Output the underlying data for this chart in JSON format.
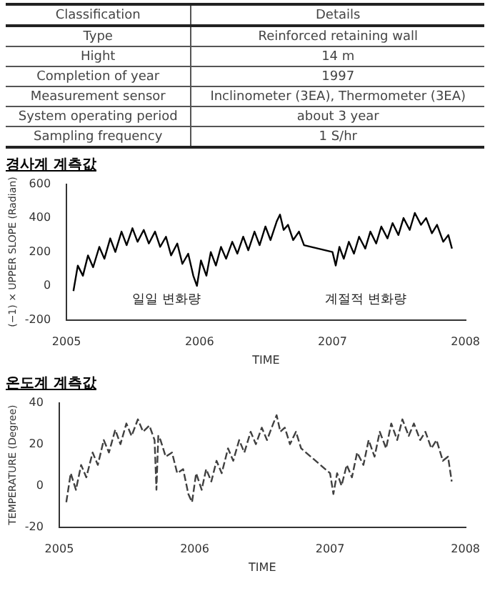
{
  "chart_data": [
    {
      "type": "other",
      "annotations": [
        "Classification",
        "Details",
        "Type",
        "Reinforced retaining wall",
        "Hight",
        "14 m",
        "Completion of year",
        "1997",
        "Measurement sensor",
        "Inclinometer (3EA), Thermometer (3EA)",
        "System operating period",
        "about 3 year",
        "Sampling frequency",
        "1 S/hr"
      ]
    },
    {
      "type": "line",
      "title": "경사계 계측값",
      "xlabel": "TIME",
      "ylabel": "(−1) × UPPER SLOPE (Radian)",
      "xlim": [
        "2005",
        "2008"
      ],
      "xticks": [
        "2005",
        "2006",
        "2007",
        "2008"
      ],
      "ylim": [
        -200,
        600
      ],
      "yticks": [
        -200,
        0,
        200,
        400,
        600
      ],
      "grid": false,
      "legend": false,
      "marker": "none",
      "line_style": "solid",
      "annotations": [
        "일일 변화량",
        "계절적 변화량"
      ],
      "series": [
        {
          "color": "#000000",
          "x": [
            "2005-01-20",
            "2005-02-01",
            "2005-02-15",
            "2005-03-01",
            "2005-03-15",
            "2005-04-01",
            "2005-04-15",
            "2005-05-01",
            "2005-05-15",
            "2005-06-01",
            "2005-06-15",
            "2005-07-01",
            "2005-07-15",
            "2005-08-01",
            "2005-08-15",
            "2005-09-01",
            "2005-09-15",
            "2005-10-01",
            "2005-10-15",
            "2005-11-01",
            "2005-11-15",
            "2005-12-01",
            "2005-12-15",
            "2005-12-25",
            "2006-01-05",
            "2006-01-20",
            "2006-02-01",
            "2006-02-15",
            "2006-03-01",
            "2006-03-15",
            "2006-04-01",
            "2006-04-15",
            "2006-05-01",
            "2006-05-15",
            "2006-06-01",
            "2006-06-15",
            "2006-07-01",
            "2006-07-15",
            "2006-08-01",
            "2006-08-10",
            "2006-08-20",
            "2006-09-01",
            "2006-09-15",
            "2006-10-01",
            "2006-10-15",
            "2007-01-01",
            "2007-01-10",
            "2007-01-20",
            "2007-02-01",
            "2007-02-15",
            "2007-03-01",
            "2007-03-15",
            "2007-04-01",
            "2007-04-15",
            "2007-05-01",
            "2007-05-15",
            "2007-06-01",
            "2007-06-15",
            "2007-07-01",
            "2007-07-15",
            "2007-08-01",
            "2007-08-15",
            "2007-09-01",
            "2007-09-15",
            "2007-10-01",
            "2007-10-15",
            "2007-11-01",
            "2007-11-15",
            "2007-11-25"
          ],
          "values": [
            -30,
            120,
            60,
            180,
            110,
            230,
            160,
            280,
            200,
            320,
            240,
            340,
            260,
            330,
            250,
            320,
            230,
            290,
            180,
            250,
            130,
            190,
            60,
            0,
            150,
            60,
            200,
            120,
            230,
            160,
            260,
            190,
            290,
            210,
            320,
            240,
            350,
            270,
            380,
            420,
            330,
            360,
            270,
            320,
            240,
            200,
            120,
            230,
            160,
            260,
            190,
            290,
            220,
            320,
            250,
            350,
            280,
            370,
            300,
            400,
            330,
            430,
            360,
            400,
            310,
            360,
            260,
            300,
            220
          ]
        }
      ]
    },
    {
      "type": "line",
      "title": "온도계 계측값",
      "xlabel": "TIME",
      "ylabel": "TEMPERATURE (Degree)",
      "xlim": [
        "2005",
        "2008"
      ],
      "xticks": [
        "2005",
        "2006",
        "2007",
        "2008"
      ],
      "ylim": [
        -20,
        40
      ],
      "yticks": [
        -20,
        0,
        20,
        40
      ],
      "grid": false,
      "legend": false,
      "marker": "none",
      "line_style": "dashed",
      "series": [
        {
          "color": "#404040",
          "x": [
            "2005-01-20",
            "2005-02-01",
            "2005-02-15",
            "2005-03-01",
            "2005-03-15",
            "2005-04-01",
            "2005-04-15",
            "2005-05-01",
            "2005-05-15",
            "2005-06-01",
            "2005-06-15",
            "2005-07-01",
            "2005-07-15",
            "2005-08-01",
            "2005-08-15",
            "2005-09-01",
            "2005-09-15",
            "2005-09-20",
            "2005-09-25",
            "2005-10-01",
            "2005-10-15",
            "2005-11-01",
            "2005-11-15",
            "2005-12-01",
            "2005-12-15",
            "2005-12-25",
            "2006-01-05",
            "2006-01-20",
            "2006-02-01",
            "2006-02-15",
            "2006-03-01",
            "2006-03-15",
            "2006-04-01",
            "2006-04-15",
            "2006-05-01",
            "2006-05-15",
            "2006-06-01",
            "2006-06-15",
            "2006-07-01",
            "2006-07-15",
            "2006-08-01",
            "2006-08-10",
            "2006-08-20",
            "2006-09-01",
            "2006-09-15",
            "2006-10-01",
            "2006-10-15",
            "2007-01-01",
            "2007-01-10",
            "2007-01-20",
            "2007-02-01",
            "2007-02-15",
            "2007-03-01",
            "2007-03-15",
            "2007-04-01",
            "2007-04-15",
            "2007-05-01",
            "2007-05-15",
            "2007-06-01",
            "2007-06-15",
            "2007-07-01",
            "2007-07-15",
            "2007-08-01",
            "2007-08-15",
            "2007-09-01",
            "2007-09-15",
            "2007-10-01",
            "2007-10-15",
            "2007-11-01",
            "2007-11-15",
            "2007-11-25"
          ],
          "values": [
            -8,
            6,
            -2,
            10,
            4,
            16,
            10,
            22,
            16,
            27,
            20,
            30,
            24,
            32,
            26,
            29,
            22,
            -2,
            24,
            22,
            14,
            16,
            6,
            8,
            -4,
            -8,
            6,
            -2,
            8,
            2,
            12,
            6,
            18,
            12,
            22,
            16,
            26,
            20,
            28,
            22,
            30,
            34,
            26,
            28,
            20,
            26,
            18,
            6,
            -4,
            6,
            0,
            10,
            4,
            16,
            10,
            22,
            14,
            26,
            18,
            30,
            22,
            32,
            24,
            30,
            22,
            26,
            18,
            22,
            12,
            14,
            2
          ]
        }
      ]
    }
  ]
}
